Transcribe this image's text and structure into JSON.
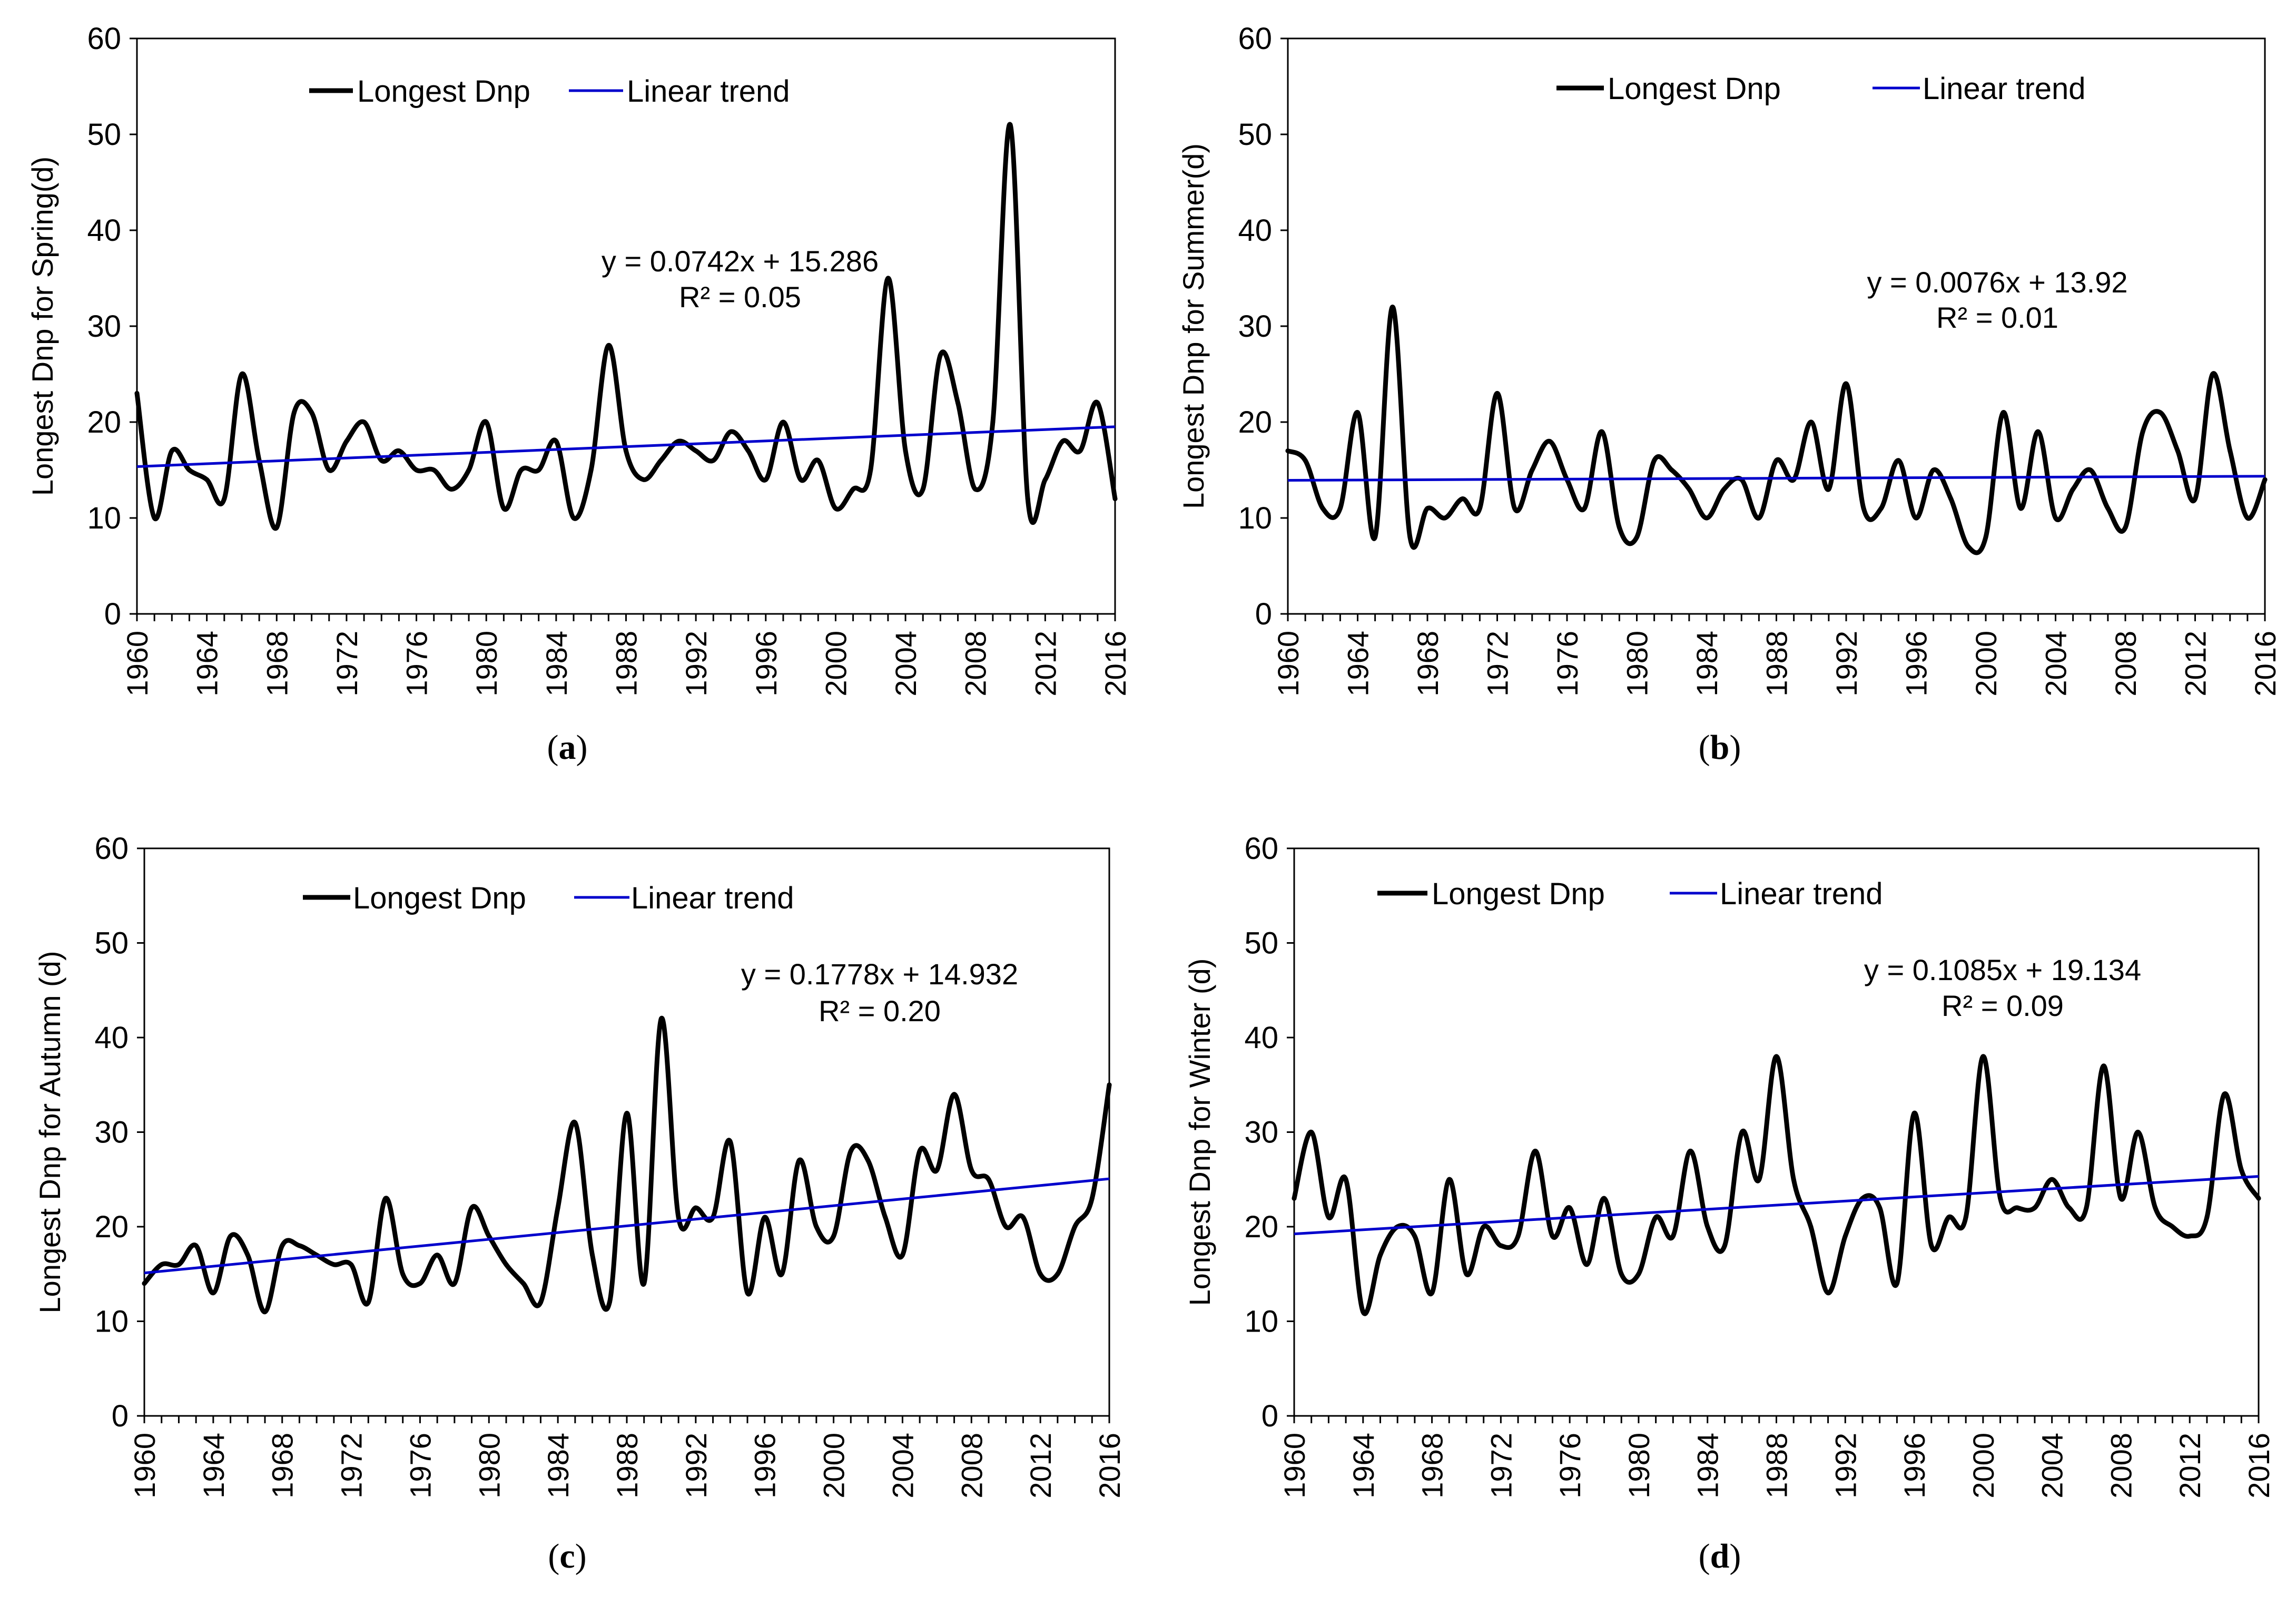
{
  "colors": {
    "series": "#000000",
    "trend": "#0000CC",
    "axis": "#000000",
    "background": "#ffffff"
  },
  "chart_data": [
    {
      "type": "line",
      "panel_label": "(a)",
      "title": "",
      "xlabel": "",
      "ylabel": "Longest Dnp for Spring(d)",
      "ylim": [
        0,
        60
      ],
      "yticks": [
        "0",
        "10",
        "20",
        "30",
        "40",
        "50",
        "60"
      ],
      "xticks": [
        "1960",
        "1964",
        "1968",
        "1972",
        "1976",
        "1980",
        "1984",
        "1988",
        "1992",
        "1996",
        "2000",
        "2004",
        "2008",
        "2012",
        "2016"
      ],
      "legend": [
        "Longest Dnp",
        "Linear trend"
      ],
      "equation": "y = 0.0742x + 15.286",
      "r_squared": "R² = 0.05",
      "trend": {
        "slope": 0.0742,
        "intercept": 15.286
      },
      "x": [
        1960,
        1961,
        1962,
        1963,
        1964,
        1965,
        1966,
        1967,
        1968,
        1969,
        1970,
        1971,
        1972,
        1973,
        1974,
        1975,
        1976,
        1977,
        1978,
        1979,
        1980,
        1981,
        1982,
        1983,
        1984,
        1985,
        1986,
        1987,
        1988,
        1989,
        1990,
        1991,
        1992,
        1993,
        1994,
        1995,
        1996,
        1997,
        1998,
        1999,
        2000,
        2001,
        2002,
        2003,
        2004,
        2005,
        2006,
        2007,
        2008,
        2009,
        2010,
        2011,
        2012,
        2013,
        2014,
        2015,
        2016
      ],
      "series": [
        {
          "name": "Longest Dnp",
          "values": [
            23,
            10,
            17,
            15,
            14,
            12,
            25,
            16,
            9,
            21,
            21,
            15,
            18,
            20,
            16,
            17,
            15,
            15,
            13,
            15,
            20,
            11,
            15,
            15,
            18,
            10,
            15,
            28,
            17,
            14,
            16,
            18,
            17,
            16,
            19,
            17,
            14,
            20,
            14,
            16,
            11,
            13,
            15,
            35,
            17,
            13,
            27,
            22,
            13,
            20,
            51,
            12,
            14,
            18,
            17,
            22,
            12
          ]
        }
      ]
    },
    {
      "type": "line",
      "panel_label": "(b)",
      "title": "",
      "xlabel": "",
      "ylabel": "Longest Dnp for Summer(d)",
      "ylim": [
        0,
        60
      ],
      "yticks": [
        "0",
        "10",
        "20",
        "30",
        "40",
        "50",
        "60"
      ],
      "xticks": [
        "1960",
        "1964",
        "1968",
        "1972",
        "1976",
        "1980",
        "1984",
        "1988",
        "1992",
        "1996",
        "2000",
        "2004",
        "2008",
        "2012",
        "2016"
      ],
      "legend": [
        "Longest Dnp",
        "Linear trend"
      ],
      "equation": "y = 0.0076x + 13.92",
      "r_squared": "R² = 0.01",
      "trend": {
        "slope": 0.0076,
        "intercept": 13.92
      },
      "x": [
        1960,
        1961,
        1962,
        1963,
        1964,
        1965,
        1966,
        1967,
        1968,
        1969,
        1970,
        1971,
        1972,
        1973,
        1974,
        1975,
        1976,
        1977,
        1978,
        1979,
        1980,
        1981,
        1982,
        1983,
        1984,
        1985,
        1986,
        1987,
        1988,
        1989,
        1990,
        1991,
        1992,
        1993,
        1994,
        1995,
        1996,
        1997,
        1998,
        1999,
        2000,
        2001,
        2002,
        2003,
        2004,
        2005,
        2006,
        2007,
        2008,
        2009,
        2010,
        2011,
        2012,
        2013,
        2014,
        2015,
        2016
      ],
      "series": [
        {
          "name": "Longest Dnp",
          "values": [
            17,
            16,
            11,
            11,
            21,
            8,
            32,
            8,
            11,
            10,
            12,
            11,
            23,
            11,
            15,
            18,
            14,
            11,
            19,
            9,
            8,
            16,
            15,
            13,
            10,
            13,
            14,
            10,
            16,
            14,
            20,
            13,
            24,
            11,
            11,
            16,
            10,
            15,
            12,
            7,
            8,
            21,
            11,
            19,
            10,
            13,
            15,
            11,
            9,
            19,
            21,
            17,
            12,
            25,
            17,
            10,
            14
          ]
        }
      ]
    },
    {
      "type": "line",
      "panel_label": "(c)",
      "title": "",
      "xlabel": "",
      "ylabel": "Longest Dnp for Autumn (d)",
      "ylim": [
        0,
        60
      ],
      "yticks": [
        "0",
        "10",
        "20",
        "30",
        "40",
        "50",
        "60"
      ],
      "xticks": [
        "1960",
        "1964",
        "1968",
        "1972",
        "1976",
        "1980",
        "1984",
        "1988",
        "1992",
        "1996",
        "2000",
        "2004",
        "2008",
        "2012",
        "2016"
      ],
      "legend": [
        "Longest Dnp",
        "Linear trend"
      ],
      "equation": "y = 0.1778x + 14.932",
      "r_squared": "R² = 0.20",
      "trend": {
        "slope": 0.1778,
        "intercept": 14.932
      },
      "x": [
        1960,
        1961,
        1962,
        1963,
        1964,
        1965,
        1966,
        1967,
        1968,
        1969,
        1970,
        1971,
        1972,
        1973,
        1974,
        1975,
        1976,
        1977,
        1978,
        1979,
        1980,
        1981,
        1982,
        1983,
        1984,
        1985,
        1986,
        1987,
        1988,
        1989,
        1990,
        1991,
        1992,
        1993,
        1994,
        1995,
        1996,
        1997,
        1998,
        1999,
        2000,
        2001,
        2002,
        2003,
        2004,
        2005,
        2006,
        2007,
        2008,
        2009,
        2010,
        2011,
        2012,
        2013,
        2014,
        2015,
        2016
      ],
      "series": [
        {
          "name": "Longest Dnp",
          "values": [
            14,
            16,
            16,
            18,
            13,
            19,
            17,
            11,
            18,
            18,
            17,
            16,
            16,
            12,
            23,
            15,
            14,
            17,
            14,
            22,
            19,
            16,
            14,
            12,
            22,
            31,
            17,
            12,
            32,
            14,
            42,
            21,
            22,
            21,
            29,
            13,
            21,
            15,
            27,
            20,
            19,
            28,
            27,
            21,
            17,
            28,
            26,
            34,
            26,
            25,
            20,
            21,
            15,
            15,
            20,
            23,
            35
          ]
        }
      ]
    },
    {
      "type": "line",
      "panel_label": "(d)",
      "title": "",
      "xlabel": "",
      "ylabel": "Longest Dnp for Winter (d)",
      "ylim": [
        0,
        60
      ],
      "yticks": [
        "0",
        "10",
        "20",
        "30",
        "40",
        "50",
        "60"
      ],
      "xticks": [
        "1960",
        "1964",
        "1968",
        "1972",
        "1976",
        "1980",
        "1984",
        "1988",
        "1992",
        "1996",
        "2000",
        "2004",
        "2008",
        "2012",
        "2016"
      ],
      "legend": [
        "Longest Dnp",
        "Linear trend"
      ],
      "equation": "y = 0.1085x + 19.134",
      "r_squared": "R² = 0.09",
      "trend": {
        "slope": 0.1085,
        "intercept": 19.134
      },
      "x": [
        1960,
        1961,
        1962,
        1963,
        1964,
        1965,
        1966,
        1967,
        1968,
        1969,
        1970,
        1971,
        1972,
        1973,
        1974,
        1975,
        1976,
        1977,
        1978,
        1979,
        1980,
        1981,
        1982,
        1983,
        1984,
        1985,
        1986,
        1987,
        1988,
        1989,
        1990,
        1991,
        1992,
        1993,
        1994,
        1995,
        1996,
        1997,
        1998,
        1999,
        2000,
        2001,
        2002,
        2003,
        2004,
        2005,
        2006,
        2007,
        2008,
        2009,
        2010,
        2011,
        2012,
        2013,
        2014,
        2015,
        2016
      ],
      "series": [
        {
          "name": "Longest Dnp",
          "values": [
            23,
            30,
            21,
            25,
            11,
            17,
            20,
            19,
            13,
            25,
            15,
            20,
            18,
            19,
            28,
            19,
            22,
            16,
            23,
            15,
            15,
            21,
            19,
            28,
            20,
            18,
            30,
            25,
            38,
            25,
            20,
            13,
            19,
            23,
            22,
            14,
            32,
            18,
            21,
            21,
            38,
            23,
            22,
            22,
            25,
            22,
            22,
            37,
            23,
            30,
            22,
            20,
            19,
            21,
            34,
            26,
            23
          ]
        }
      ]
    }
  ]
}
